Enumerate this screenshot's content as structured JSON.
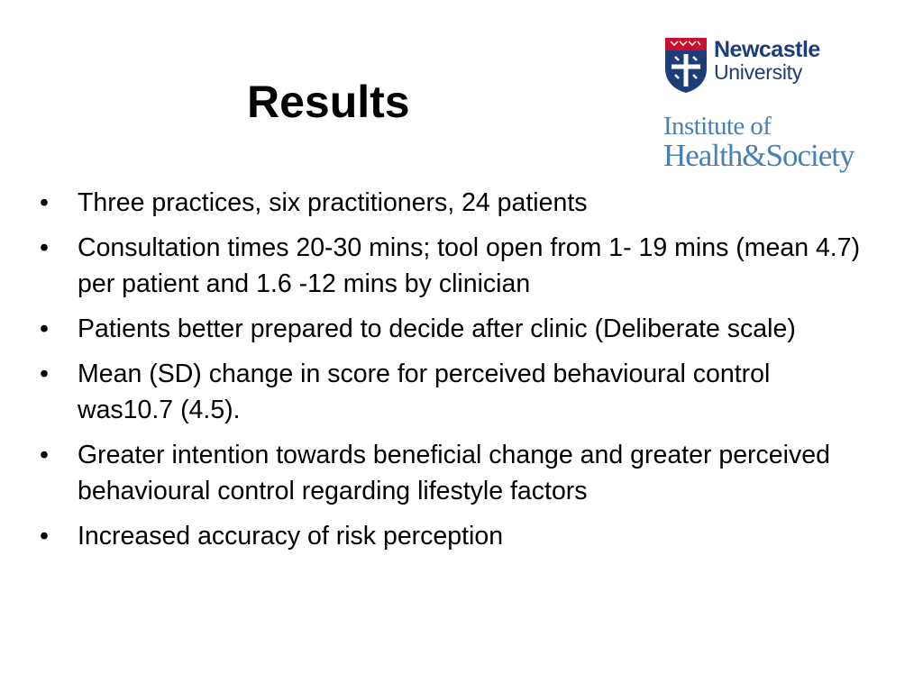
{
  "slide": {
    "title": "Results",
    "logos": {
      "newcastle": {
        "line1": "Newcastle",
        "line2": "University",
        "colors": {
          "text": "#1d3c78",
          "shield": "#1d3c78",
          "shield_top": "#c8102e"
        }
      },
      "institute": {
        "line1": "Institute of",
        "line2": "Health&Society",
        "color": "#4a7fb5"
      }
    },
    "bullet_symbol": "•",
    "bullets": [
      {
        "text": "Three practices, six practitioners, 24 patients"
      },
      {
        "text": "Consultation times 20-30 mins; tool open from 1- 19 mins (mean 4.7) per patient and 1.6 -12 mins by clinician"
      },
      {
        "text": "Patients better prepared to decide after clinic (Deliberate scale)"
      },
      {
        "text": "Mean (SD) change in score for perceived behavioural control was10.7 (4.5)."
      },
      {
        "text": "Greater intention towards beneficial change and greater perceived behavioural control regarding lifestyle factors"
      },
      {
        "text": "Increased accuracy of risk perception"
      }
    ]
  }
}
